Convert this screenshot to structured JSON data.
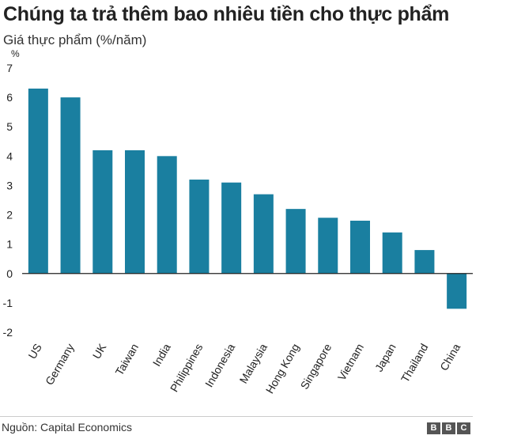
{
  "header": {
    "title": "Chúng ta trả thêm bao nhiêu tiền cho thực phẩm",
    "subtitle": "Giá thực phẩm (%/năm)"
  },
  "footer": {
    "source_label": "Nguồn:",
    "source_name": "Capital Economics",
    "logo_letters": [
      "B",
      "B",
      "C"
    ]
  },
  "colors": {
    "bar": "#1a7fa0",
    "axis": "#222222",
    "text": "#222222"
  },
  "chart_data": {
    "type": "bar",
    "title": "Chúng ta trả thêm bao nhiêu tiền cho thực phẩm",
    "subtitle": "Giá thực phẩm (%/năm)",
    "ylabel": "%",
    "xlabel": "",
    "ylim": [
      -2,
      7
    ],
    "yticks": [
      -2,
      -1,
      0,
      1,
      2,
      3,
      4,
      5,
      6,
      7
    ],
    "grid": false,
    "categories": [
      "US",
      "Germany",
      "UK",
      "Taiwan",
      "India",
      "Philippines",
      "Indonesia",
      "Malaysia",
      "Hong Kong",
      "Singapore",
      "Vietnam",
      "Japan",
      "Thailand",
      "China"
    ],
    "values": [
      6.3,
      6.0,
      4.2,
      4.2,
      4.0,
      3.2,
      3.1,
      2.7,
      2.2,
      1.9,
      1.8,
      1.4,
      0.8,
      -1.2
    ]
  }
}
